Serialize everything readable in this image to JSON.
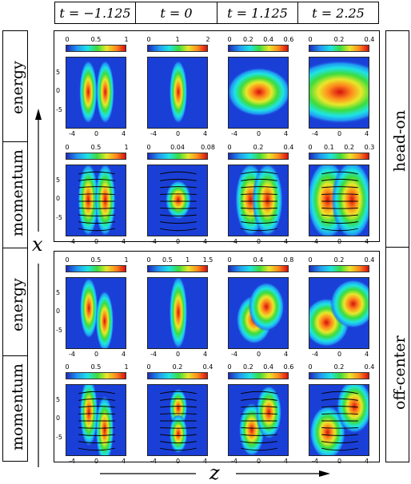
{
  "time_labels": [
    "t = −1.125",
    "t = 0",
    "t = 1.125",
    "t = 2.25"
  ],
  "row_labels": [
    "energy",
    "momentum",
    "energy",
    "momentum"
  ],
  "group_labels": [
    "head-on",
    "off-center"
  ],
  "x_axis_symbol": "x",
  "z_axis_symbol": "z",
  "z_ticks": [
    "-4",
    "0",
    "4"
  ],
  "x_ticks": [
    "5",
    "0",
    "-5"
  ],
  "colorbars": [
    [
      "0",
      "0.5",
      "1"
    ],
    [
      "0",
      "1",
      "2"
    ],
    [
      "0",
      "0.2",
      "0.4",
      "0.6"
    ],
    [
      "0",
      "0.2",
      "0.4"
    ],
    [
      "0",
      "0.5",
      "1"
    ],
    [
      "0",
      "0.04",
      "0.08"
    ],
    [
      "0",
      "0.2",
      "0.4"
    ],
    [
      "0",
      "0.1",
      "0.2",
      "0.3"
    ],
    [
      "0",
      "0.5",
      "1"
    ],
    [
      "0",
      "0.5",
      "1",
      "1.5"
    ],
    [
      "0",
      "0.4",
      "0.8"
    ],
    [
      "0",
      "0.2",
      "0.4"
    ],
    [
      "0",
      "0.5",
      "1"
    ],
    [
      "0",
      "0.2",
      "0.4"
    ],
    [
      "0",
      "0.2",
      "0.4",
      "0.6"
    ],
    [
      "0",
      "0.2",
      "0.4"
    ]
  ],
  "colors": {
    "background": "#1a3fd6",
    "ramp": [
      "#1e2ab8",
      "#2196f3",
      "#1ee4e4",
      "#3ddc3d",
      "#e8e82a",
      "#ff8a1c",
      "#d51010"
    ]
  }
}
